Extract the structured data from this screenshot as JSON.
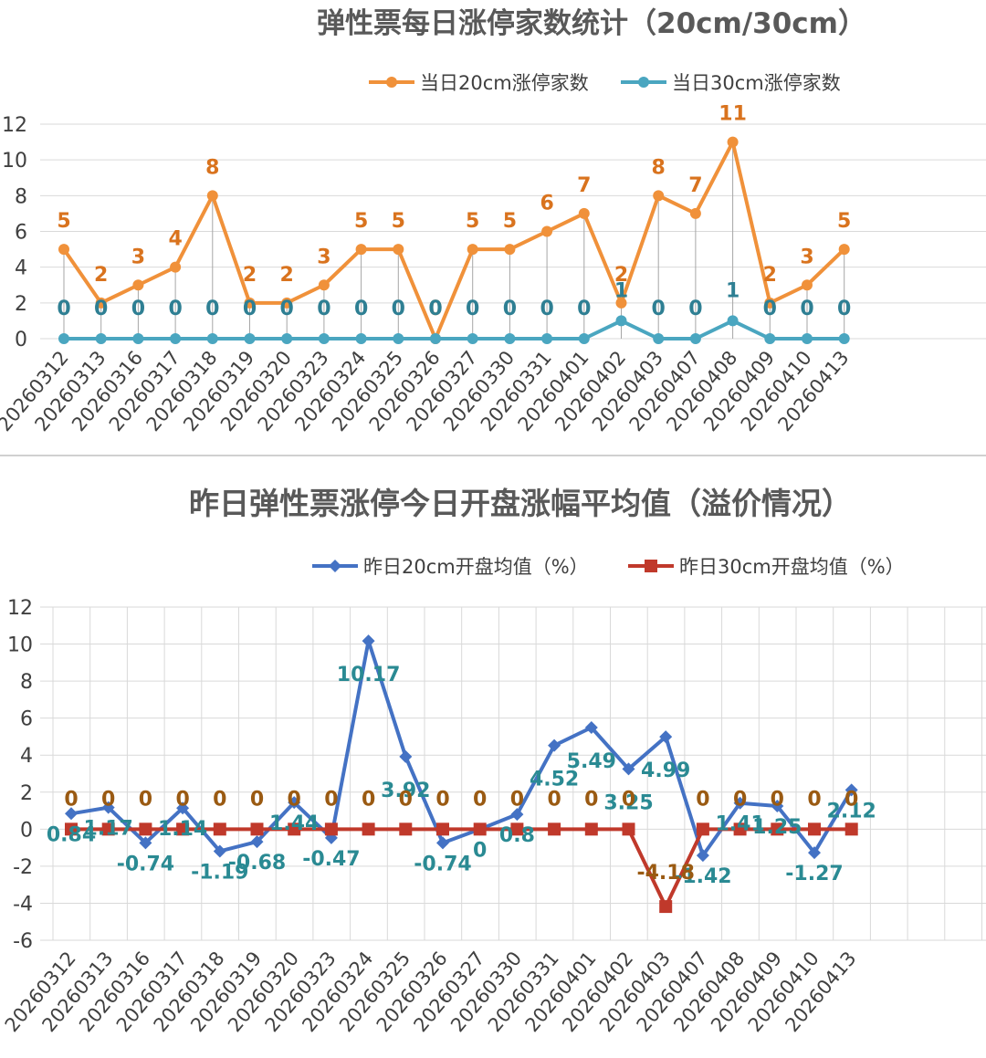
{
  "chart_data": [
    {
      "type": "line",
      "title": "弹性票每日涨停家数统计（20cm/30cm）",
      "categories": [
        "20260312",
        "20260313",
        "20260316",
        "20260317",
        "20260318",
        "20260319",
        "20260320",
        "20260323",
        "20260324",
        "20260325",
        "20260326",
        "20260327",
        "20260330",
        "20260331",
        "20260401",
        "20260402",
        "20260403",
        "20260407",
        "20260408",
        "20260409",
        "20260410",
        "20260413"
      ],
      "series": [
        {
          "name": "当日20cm涨停家数",
          "color": "#f0913a",
          "labelColor": "#d9731e",
          "marker": "circle",
          "values": [
            5,
            2,
            3,
            4,
            8,
            2,
            2,
            3,
            5,
            5,
            0,
            5,
            5,
            6,
            7,
            2,
            8,
            7,
            11,
            2,
            3,
            5
          ]
        },
        {
          "name": "当日30cm涨停家数",
          "color": "#4aa6c0",
          "labelColor": "#2e7f93",
          "marker": "circle",
          "values": [
            0,
            0,
            0,
            0,
            0,
            0,
            0,
            0,
            0,
            0,
            0,
            0,
            0,
            0,
            0,
            1,
            0,
            0,
            1,
            0,
            0,
            0
          ]
        }
      ],
      "ylim": [
        0,
        12
      ],
      "yticks": [
        0,
        2,
        4,
        6,
        8,
        10,
        12
      ],
      "legend": "top",
      "grid": true
    },
    {
      "type": "line",
      "title": "昨日弹性票涨停今日开盘涨幅平均值（溢价情况）",
      "categories": [
        "20260312",
        "20260313",
        "20260316",
        "20260317",
        "20260318",
        "20260319",
        "20260320",
        "20260323",
        "20260324",
        "20260325",
        "20260326",
        "20260327",
        "20260330",
        "20260331",
        "20260401",
        "20260402",
        "20260403",
        "20260407",
        "20260408",
        "20260409",
        "20260410",
        "20260413"
      ],
      "series": [
        {
          "name": "昨日20cm开盘均值（%）",
          "color": "#4472c4",
          "labelColor": "#2a8a93",
          "marker": "diamond",
          "values": [
            0.84,
            1.17,
            -0.74,
            1.14,
            -1.19,
            -0.68,
            1.44,
            -0.47,
            10.17,
            3.92,
            -0.74,
            0,
            0.8,
            4.52,
            5.49,
            3.25,
            4.99,
            -1.42,
            1.41,
            1.25,
            -1.27,
            2.12
          ]
        },
        {
          "name": "昨日30cm开盘均值（%）",
          "color": "#c0392b",
          "labelColor": "#9a5a12",
          "marker": "square",
          "values": [
            0,
            0,
            0,
            0,
            0,
            0,
            0,
            0,
            0,
            0,
            0,
            0,
            0,
            0,
            0,
            0,
            -4.18,
            0,
            0,
            0,
            0,
            0
          ]
        }
      ],
      "ylim": [
        -6,
        12
      ],
      "yticks": [
        -6,
        -4,
        -2,
        0,
        2,
        4,
        6,
        8,
        10,
        12
      ],
      "legend": "top",
      "grid": true
    }
  ]
}
